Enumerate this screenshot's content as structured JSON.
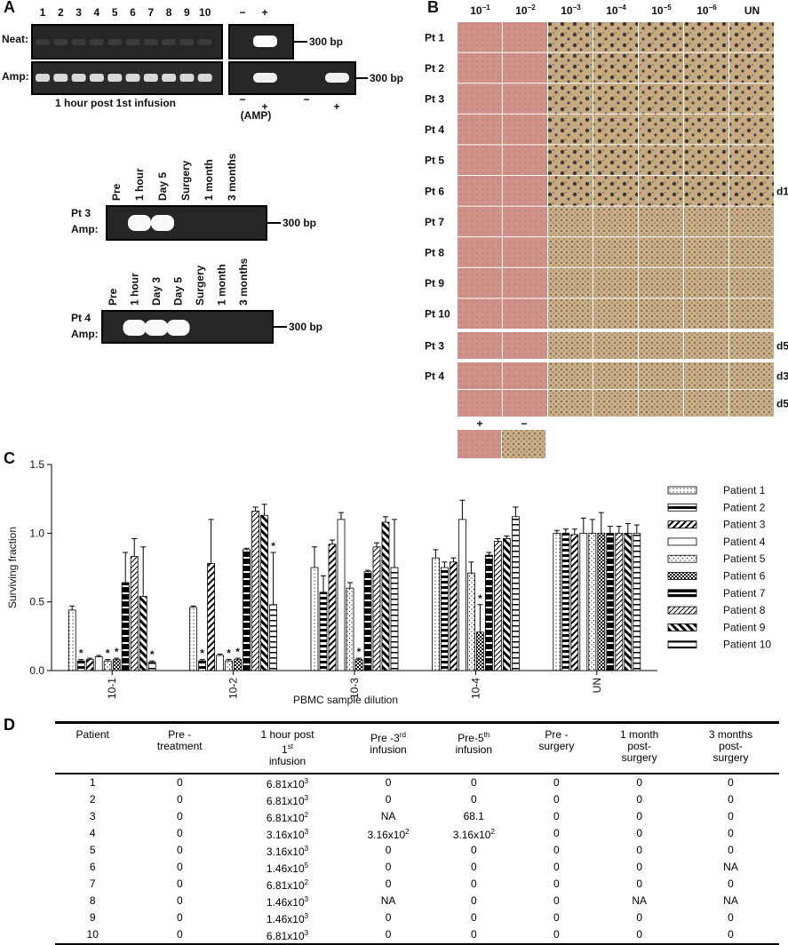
{
  "panel_a": {
    "label": "A",
    "lanes": [
      "1",
      "2",
      "3",
      "4",
      "5",
      "6",
      "7",
      "8",
      "9",
      "10"
    ],
    "ctrl_lanes": [
      "−",
      "+"
    ],
    "rows": [
      "Neat:",
      "Amp:"
    ],
    "marker": "300 bp",
    "caption": "1 hour post 1st infusion",
    "amp_signs": [
      "−",
      "+",
      "−",
      "+"
    ],
    "amp_note": "(AMP)",
    "gels": [
      {
        "patient": "Pt 3",
        "row": "Amp:",
        "lanes": [
          "Pre",
          "1 hour",
          "Day 5",
          "Surgery",
          "1 month",
          "3 months"
        ]
      },
      {
        "patient": "Pt 4",
        "row": "Amp:",
        "lanes": [
          "Pre",
          "1 hour",
          "Day 3",
          "Day 5",
          "Surgery",
          "1 month",
          "3 months"
        ]
      }
    ]
  },
  "panel_b": {
    "label": "B",
    "columns": [
      {
        "base": "10",
        "exp": "−1"
      },
      {
        "base": "10",
        "exp": "−2"
      },
      {
        "base": "10",
        "exp": "−3"
      },
      {
        "base": "10",
        "exp": "−4"
      },
      {
        "base": "10",
        "exp": "−5"
      },
      {
        "base": "10",
        "exp": "−6"
      },
      {
        "base": "UN"
      }
    ],
    "rows": [
      "Pt 1",
      "Pt 2",
      "Pt 3",
      "Pt 4",
      "Pt 5",
      "Pt 6",
      "Pt 7",
      "Pt 8",
      "Pt 9",
      "Pt 10"
    ],
    "day": "d1",
    "followup": [
      {
        "patient": "Pt 3",
        "days": [
          "d5"
        ]
      },
      {
        "patient": "Pt 4",
        "days": [
          "d3",
          "d5"
        ]
      }
    ],
    "controls": [
      "+",
      "−"
    ]
  },
  "chart_data": {
    "type": "bar",
    "panel_label": "C",
    "x_label": "PBMC sample dilution",
    "y_label": "Surviving fraction",
    "categories": [
      "10-1",
      "10-2",
      "10-3",
      "10-4",
      "UN"
    ],
    "ylim": [
      0,
      1.5
    ],
    "yticks": [
      {
        "value": 0,
        "label": "0.0"
      },
      0.5,
      {
        "value": 1,
        "label": "1.0"
      },
      1.5
    ],
    "annotation": "*",
    "annotations": [
      {
        "series": 1,
        "category": 0
      },
      {
        "series": 4,
        "category": 0
      },
      {
        "series": 5,
        "category": 0
      },
      {
        "series": 9,
        "category": 0
      },
      {
        "series": 1,
        "category": 1
      },
      {
        "series": 4,
        "category": 1
      },
      {
        "series": 5,
        "category": 1
      },
      {
        "series": 9,
        "category": 1
      },
      {
        "series": 5,
        "category": 2
      },
      {
        "series": 5,
        "category": 3
      }
    ],
    "series": [
      {
        "name": "Patient 1",
        "color": "#000000",
        "values": [
          0.44,
          0.46,
          0.75,
          0.82,
          1.0
        ],
        "errors": [
          0.03,
          0.01,
          0.15,
          0.06,
          0.02
        ]
      },
      {
        "name": "Patient 2",
        "color": "#000000",
        "values": [
          0.07,
          0.07,
          0.57,
          0.75,
          1.0
        ],
        "errors": [
          0.01,
          0.01,
          0.12,
          0.04,
          0.03
        ]
      },
      {
        "name": "Patient 3",
        "color": "#000000",
        "values": [
          0.08,
          0.78,
          0.92,
          0.79,
          0.99
        ],
        "errors": [
          0.01,
          0.32,
          0.03,
          0.03,
          0.04
        ]
      },
      {
        "name": "Patient 4",
        "color": "#000000",
        "values": [
          0.1,
          0.11,
          1.1,
          1.1,
          1.0
        ],
        "errors": [
          0.01,
          0.01,
          0.05,
          0.14,
          0.11
        ]
      },
      {
        "name": "Patient 5",
        "color": "#000000",
        "values": [
          0.07,
          0.07,
          0.6,
          0.71,
          1.0
        ],
        "errors": [
          0.01,
          0.01,
          0.04,
          0.08,
          0.1
        ]
      },
      {
        "name": "Patient 6",
        "color": "#000000",
        "values": [
          0.08,
          0.08,
          0.08,
          0.28,
          1.0
        ],
        "errors": [
          0.01,
          0.01,
          0.01,
          0.2,
          0.15
        ]
      },
      {
        "name": "Patient 7",
        "color": "#000000",
        "values": [
          0.64,
          0.88,
          0.72,
          0.84,
          1.0
        ],
        "errors": [
          0.22,
          0.01,
          0.01,
          0.02,
          0.05
        ]
      },
      {
        "name": "Patient 8",
        "color": "#000000",
        "values": [
          0.83,
          1.16,
          0.9,
          0.94,
          1.0
        ],
        "errors": [
          0.13,
          0.03,
          0.03,
          0.02,
          0.05
        ]
      },
      {
        "name": "Patient 9",
        "color": "#000000",
        "values": [
          0.54,
          1.13,
          1.08,
          0.96,
          1.0
        ],
        "errors": [
          0.36,
          0.08,
          0.04,
          0.02,
          0.07
        ]
      },
      {
        "name": "Patient 10",
        "color": "#000000",
        "values": [
          0.06,
          0.48,
          0.75,
          1.12,
          1.0
        ],
        "errors": [
          0.01,
          0.38,
          0.35,
          0.07,
          0.06
        ]
      }
    ]
  },
  "panel_d": {
    "label": "D",
    "header": [
      [
        "Patient"
      ],
      [
        "Pre -",
        "treatment"
      ],
      [
        "1 hour post",
        {
          "text": "1",
          "sup": "st"
        },
        "infusion"
      ],
      [
        {
          "text": "Pre -3",
          "sup": "rd"
        },
        "infusion"
      ],
      [
        {
          "text": "Pre-5",
          "sup": "th"
        },
        "infusion"
      ],
      [
        "Pre -",
        "surgery"
      ],
      [
        "1 month",
        "post-",
        "surgery"
      ],
      [
        "3 months",
        "post-",
        "surgery"
      ]
    ],
    "rows": [
      [
        "1",
        "0",
        {
          "text": "6.81x10",
          "sup": "3"
        },
        "0",
        "0",
        "0",
        "0",
        "0"
      ],
      [
        "2",
        "0",
        {
          "text": "6.81x10",
          "sup": "3"
        },
        "0",
        "0",
        "0",
        "0",
        "0"
      ],
      [
        "3",
        "0",
        {
          "text": "6.81x10",
          "sup": "2"
        },
        "NA",
        "68.1",
        "0",
        "0",
        "0"
      ],
      [
        "4",
        "0",
        {
          "text": "3.16x10",
          "sup": "3"
        },
        {
          "text": "3.16x10",
          "sup": "2"
        },
        {
          "text": "3.16x10",
          "sup": "2"
        },
        "0",
        "0",
        "0"
      ],
      [
        "5",
        "0",
        {
          "text": "3.16x10",
          "sup": "3"
        },
        "0",
        "0",
        "0",
        "0",
        "0"
      ],
      [
        "6",
        "0",
        {
          "text": "1.46x10",
          "sup": "5"
        },
        "0",
        "0",
        "0",
        "0",
        "NA"
      ],
      [
        "7",
        "0",
        {
          "text": "6.81x10",
          "sup": "2"
        },
        "0",
        "0",
        "0",
        "0",
        "0"
      ],
      [
        "8",
        "0",
        {
          "text": "1.46x10",
          "sup": "3"
        },
        "NA",
        "0",
        "0",
        "NA",
        "NA"
      ],
      [
        "9",
        "0",
        {
          "text": "1.46x10",
          "sup": "3"
        },
        "0",
        "0",
        "0",
        "0",
        "0"
      ],
      [
        "10",
        "0",
        {
          "text": "6.81x10",
          "sup": "3"
        },
        "0",
        "0",
        "0",
        "0",
        "0"
      ]
    ]
  }
}
